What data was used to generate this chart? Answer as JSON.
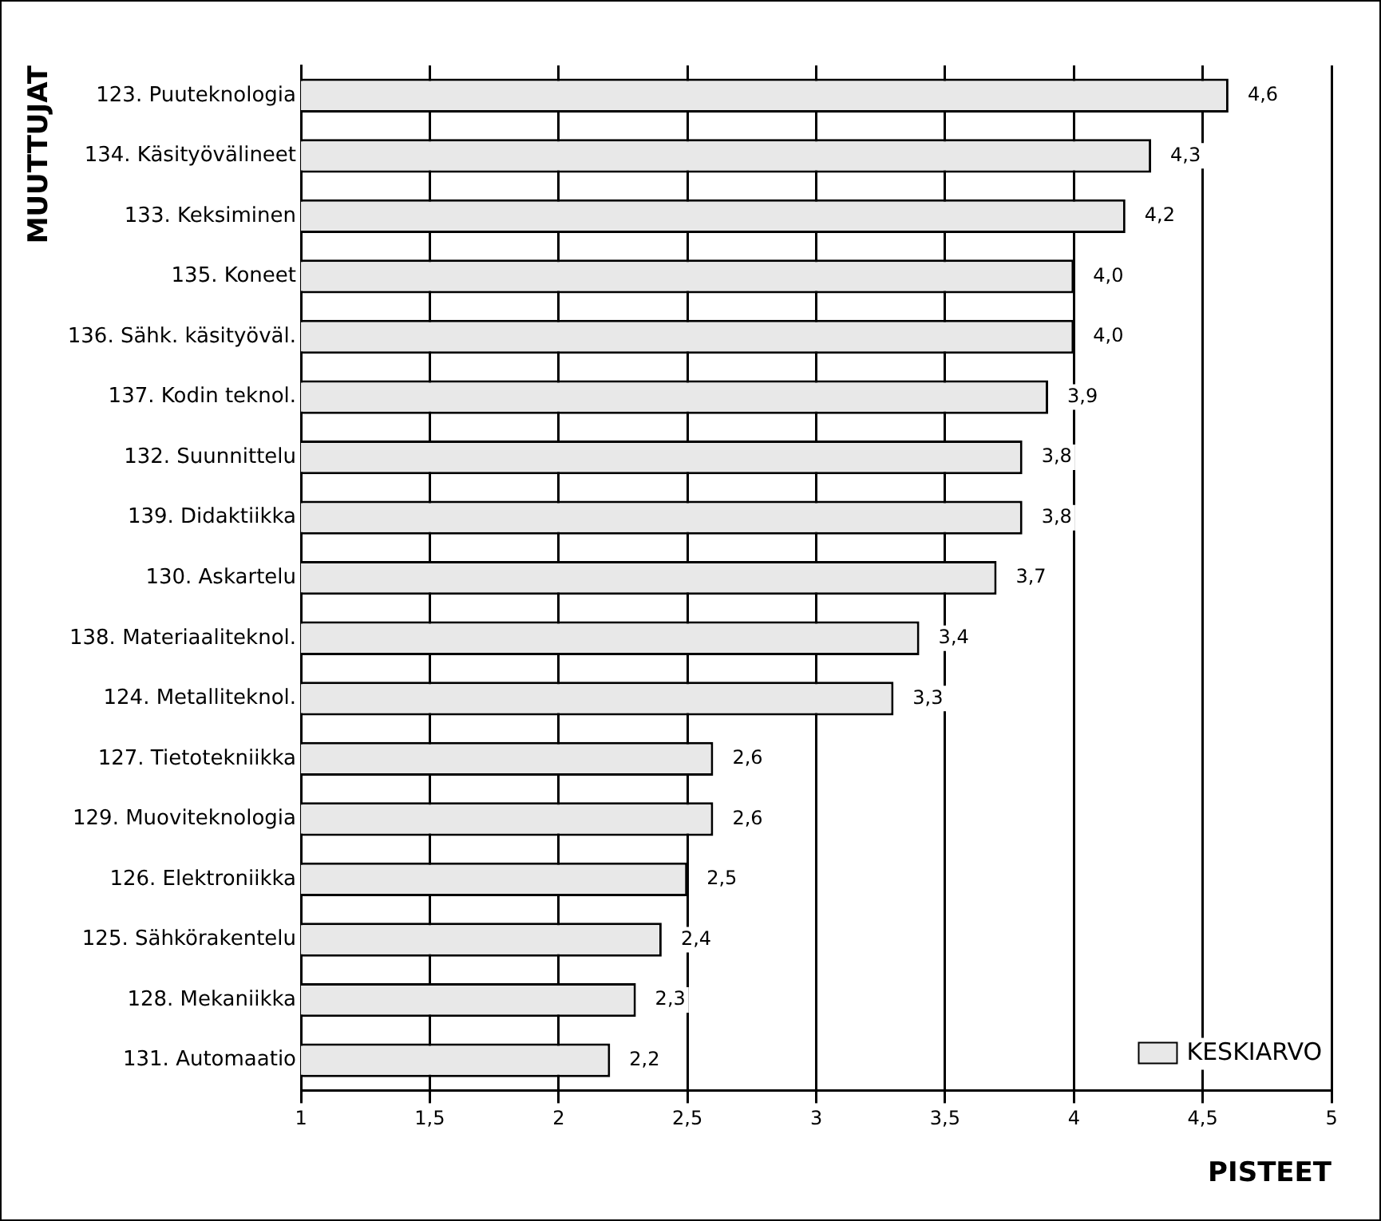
{
  "chart_data": {
    "type": "bar",
    "orientation": "horizontal",
    "xlabel": "PISTEET",
    "ylabel": "MUUTTUJAT",
    "categories": [
      "123. Puuteknologia",
      "134. Käsityövälineet",
      "133. Keksiminen",
      "135. Koneet",
      "136. Sähk. käsityöväl.",
      "137. Kodin teknol.",
      "132. Suunnittelu",
      "139. Didaktiikka",
      "130. Askartelu",
      "138. Materiaaliteknol.",
      "124. Metalliteknol.",
      "127. Tietotekniikka",
      "129. Muoviteknologia",
      "126. Elektroniikka",
      "125. Sähkörakentelu",
      "128. Mekaniikka",
      "131. Automaatio"
    ],
    "series": [
      {
        "name": "KESKIARVO",
        "color": "#e8e8e8",
        "values": [
          4.6,
          4.3,
          4.2,
          4.0,
          4.0,
          3.9,
          3.8,
          3.8,
          3.7,
          3.4,
          3.3,
          2.6,
          2.6,
          2.5,
          2.4,
          2.3,
          2.2
        ],
        "value_labels": [
          "4,6",
          "4,3",
          "4,2",
          "4,0",
          "4,0",
          "3,9",
          "3,8",
          "3,8",
          "3,7",
          "3,4",
          "3,3",
          "2,6",
          "2,6",
          "2,5",
          "2,4",
          "2,3",
          "2,2"
        ]
      }
    ],
    "xlim": [
      1,
      5
    ],
    "xticks": [
      1,
      {
        "value": 1.5,
        "label": "1,5"
      },
      2,
      {
        "value": 2.5,
        "label": "2,5"
      },
      3,
      {
        "value": 3.5,
        "label": "3,5"
      },
      4,
      {
        "value": 4.5,
        "label": "4,5"
      },
      5
    ],
    "grid": "x",
    "legend": "bottom right"
  }
}
